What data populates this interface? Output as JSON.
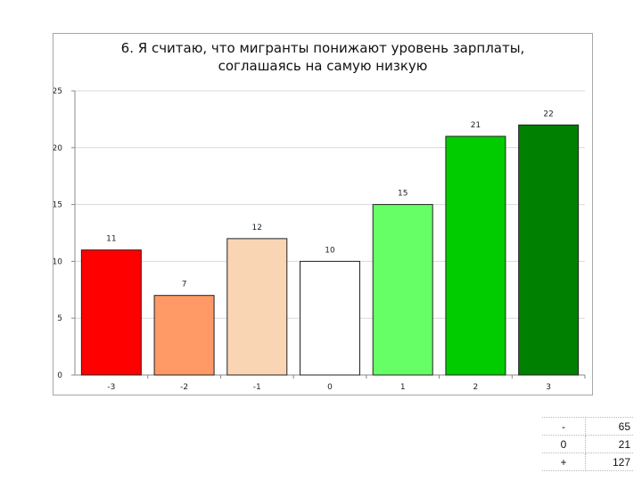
{
  "chart_data": {
    "type": "bar",
    "title_lines": [
      "6. Я считаю, что мигранты понижают уровень зарплаты,",
      "соглашаясь на самую низкую"
    ],
    "categories": [
      "-3",
      "-2",
      "-1",
      "0",
      "1",
      "2",
      "3"
    ],
    "values": [
      11,
      7,
      12,
      10,
      15,
      21,
      22
    ],
    "colors": [
      "#ff0000",
      "#ff9966",
      "#fad5b4",
      "#ffffff",
      "#66ff66",
      "#00cc00",
      "#008000"
    ],
    "ylim": [
      0,
      25
    ],
    "yticks": [
      0,
      5,
      10,
      15,
      20,
      25
    ],
    "grid": true,
    "xlabel": "",
    "ylabel": ""
  },
  "summary_table": [
    {
      "label": "-",
      "value": "65"
    },
    {
      "label": "0",
      "value": "21"
    },
    {
      "label": "+",
      "value": "127"
    }
  ]
}
